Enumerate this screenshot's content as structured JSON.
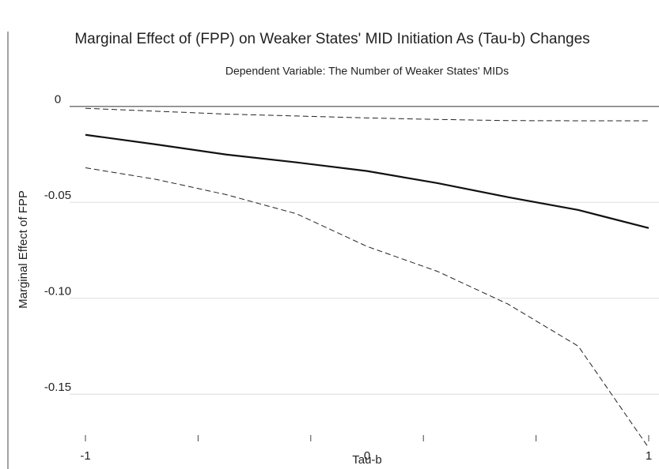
{
  "chart_data": {
    "type": "line",
    "title": "Marginal Effect of (FPP) on Weaker States' MID Initiation As (Tau-b) Changes",
    "subtitle": "Dependent Variable: The Number of Weaker States' MIDs",
    "xlabel": "Tau-b",
    "ylabel": "Marginal Effect of FPP",
    "x": [
      -1,
      -0.75,
      -0.5,
      -0.25,
      0,
      0.25,
      0.5,
      0.75,
      1
    ],
    "series": [
      {
        "color": "#222222",
        "dash": true,
        "values": [
          -0.001,
          -0.0025,
          -0.004,
          -0.005,
          -0.006,
          -0.0068,
          -0.0074,
          -0.0075,
          -0.0075
        ]
      },
      {
        "color": "#111111",
        "dash": false,
        "values": [
          -0.0148,
          -0.0198,
          -0.0251,
          -0.0292,
          -0.0337,
          -0.04,
          -0.0473,
          -0.054,
          -0.0634
        ]
      },
      {
        "color": "#222222",
        "dash": true,
        "values": [
          -0.032,
          -0.038,
          -0.046,
          -0.056,
          -0.073,
          -0.086,
          -0.103,
          -0.125,
          -0.178
        ]
      }
    ],
    "xlim": [
      -1,
      1
    ],
    "xticks": [
      -1,
      0,
      1
    ],
    "xminor_ticks": [
      -1,
      -0.6,
      -0.2,
      0.2,
      0.6,
      1
    ],
    "ylim": [
      -0.189,
      0.039
    ],
    "yticks": [
      0,
      -0.05,
      {
        "value": -0.1,
        "label": "-0.10"
      },
      -0.15
    ],
    "grid": true
  }
}
